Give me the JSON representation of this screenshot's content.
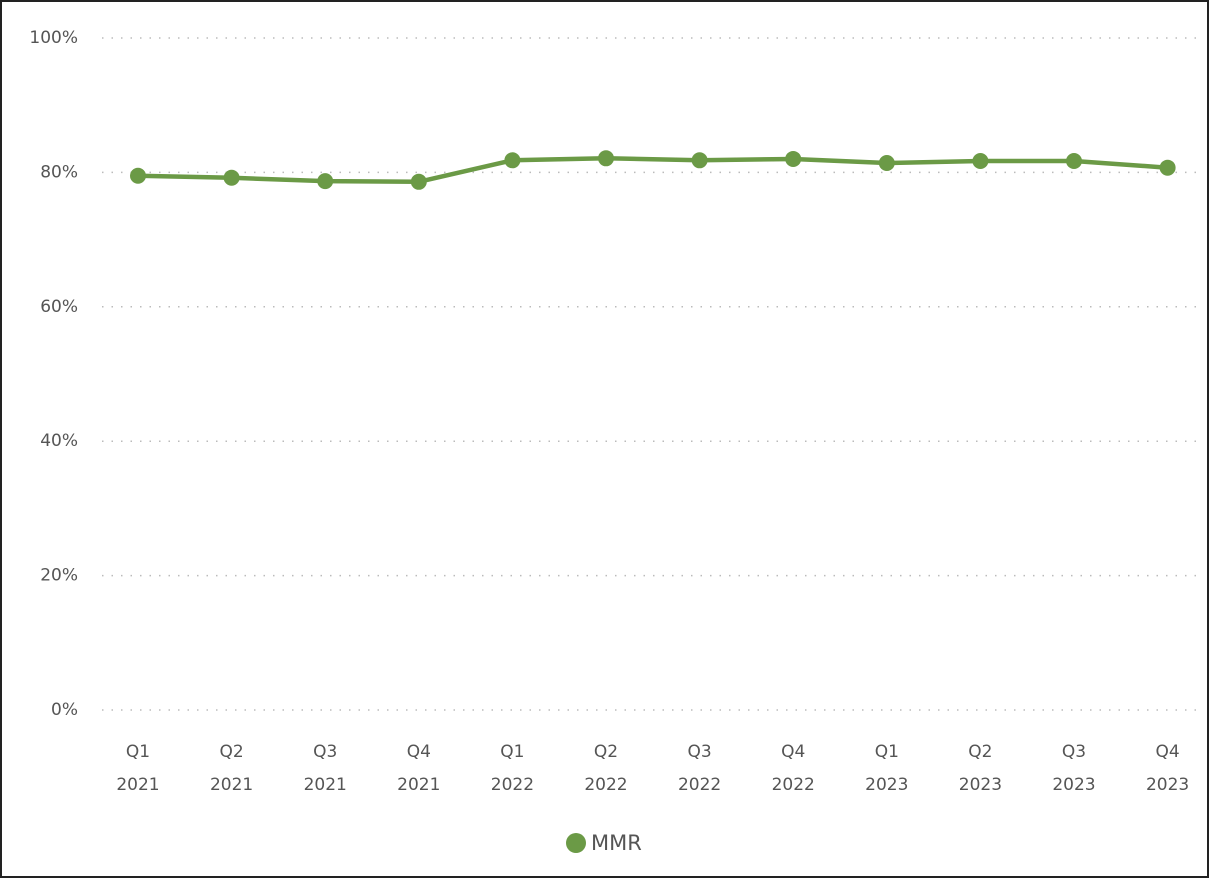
{
  "chart_data": {
    "type": "line",
    "categories": [
      "Q1 2021",
      "Q2 2021",
      "Q3 2021",
      "Q4 2021",
      "Q1 2022",
      "Q2 2022",
      "Q3 2022",
      "Q4 2022",
      "Q1 2023",
      "Q2 2023",
      "Q3 2023",
      "Q4 2023"
    ],
    "series": [
      {
        "name": "MMR",
        "color": "#6b9a46",
        "values": [
          79.5,
          79.2,
          78.7,
          78.6,
          81.8,
          82.1,
          81.8,
          82.0,
          81.4,
          81.7,
          81.7,
          80.7
        ]
      }
    ],
    "ylim": [
      0,
      100
    ],
    "yticks": [
      {
        "value": 0,
        "label": "0%"
      },
      {
        "value": 20,
        "label": "20%"
      },
      {
        "value": 40,
        "label": "40%"
      },
      {
        "value": 60,
        "label": "60%"
      },
      {
        "value": 80,
        "label": "80%"
      },
      {
        "value": 100,
        "label": "100%"
      }
    ],
    "grid": true,
    "legend": "bottom"
  }
}
